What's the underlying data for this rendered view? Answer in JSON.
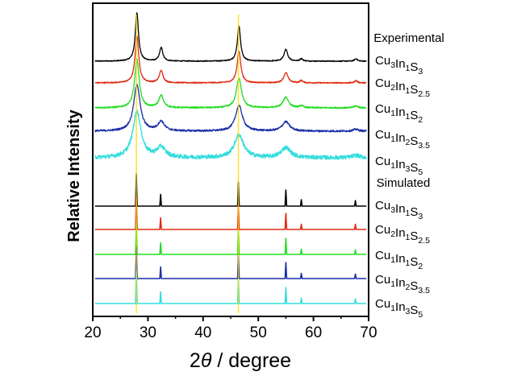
{
  "chart_data": {
    "type": "line",
    "title": "",
    "xlabel": "2θ / degree",
    "xlabel_symbol": "2θ",
    "xlabel_rest": " / degree",
    "ylabel": "Relative Intensity",
    "xlim": [
      20,
      70
    ],
    "xticks": [
      20,
      30,
      40,
      50,
      60,
      70
    ],
    "yticks_shown": false,
    "groups": {
      "experimental_label": "Experimental",
      "simulated_label": "Simulated"
    },
    "series": [
      {
        "name": "Cu3In1S3",
        "group": "Experimental",
        "color": "#000000",
        "peaks_2theta": [
          28.0,
          32.4,
          46.5,
          55.0,
          57.8,
          67.7
        ],
        "peak_rel_heights": [
          1.0,
          0.28,
          0.72,
          0.24,
          0.05,
          0.05
        ],
        "peak_widths": [
          0.35,
          0.35,
          0.35,
          0.4,
          0.3,
          0.3
        ],
        "noise": 0.01
      },
      {
        "name": "Cu2In1S2.5",
        "group": "Experimental",
        "color": "#e02a10",
        "peaks_2theta": [
          28.0,
          32.4,
          46.5,
          55.0,
          57.8,
          67.7
        ],
        "peak_rel_heights": [
          1.0,
          0.26,
          0.68,
          0.22,
          0.05,
          0.05
        ],
        "peak_widths": [
          0.4,
          0.4,
          0.4,
          0.45,
          0.3,
          0.3
        ],
        "noise": 0.012
      },
      {
        "name": "Cu1In1S2",
        "group": "Experimental",
        "color": "#22dd22",
        "peaks_2theta": [
          28.0,
          32.4,
          46.5,
          55.0,
          57.8,
          67.7
        ],
        "peak_rel_heights": [
          1.0,
          0.25,
          0.62,
          0.22,
          0.04,
          0.04
        ],
        "peak_widths": [
          0.5,
          0.5,
          0.55,
          0.6,
          0.4,
          0.4
        ],
        "noise": 0.015
      },
      {
        "name": "Cu1In2S3.5",
        "group": "Experimental",
        "color": "#1a2fa8",
        "peaks_2theta": [
          28.0,
          32.4,
          46.5,
          55.0,
          67.7
        ],
        "peak_rel_heights": [
          1.0,
          0.2,
          0.55,
          0.2,
          0.04
        ],
        "peak_widths": [
          0.7,
          0.7,
          0.75,
          0.8,
          0.6
        ],
        "noise": 0.02
      },
      {
        "name": "Cu1In3S5",
        "group": "Experimental",
        "color": "#33dddd",
        "peaks_2theta": [
          28.0,
          32.4,
          46.5,
          55.0,
          67.7
        ],
        "peak_rel_heights": [
          1.0,
          0.22,
          0.5,
          0.22,
          0.05
        ],
        "peak_widths": [
          0.9,
          0.9,
          1.0,
          1.0,
          0.8
        ],
        "noise": 0.045
      },
      {
        "name": "Cu3In1S3",
        "group": "Simulated",
        "color": "#000000",
        "peaks_2theta": [
          27.9,
          32.3,
          46.4,
          55.0,
          57.8,
          67.6
        ],
        "peak_rel_heights": [
          1.0,
          0.36,
          0.75,
          0.5,
          0.2,
          0.17
        ]
      },
      {
        "name": "Cu2In1S2.5",
        "group": "Simulated",
        "color": "#e02a10",
        "peaks_2theta": [
          27.9,
          32.3,
          46.4,
          55.0,
          57.8,
          67.6
        ],
        "peak_rel_heights": [
          1.0,
          0.36,
          0.75,
          0.5,
          0.16,
          0.16
        ]
      },
      {
        "name": "Cu1In1S2",
        "group": "Simulated",
        "color": "#22dd22",
        "peaks_2theta": [
          27.9,
          32.3,
          46.4,
          55.0,
          57.8,
          67.6
        ],
        "peak_rel_heights": [
          1.0,
          0.36,
          0.75,
          0.5,
          0.16,
          0.14
        ]
      },
      {
        "name": "Cu1In2S3.5",
        "group": "Simulated",
        "color": "#1a2fa8",
        "peaks_2theta": [
          27.9,
          32.3,
          46.4,
          55.0,
          57.8,
          67.6
        ],
        "peak_rel_heights": [
          1.0,
          0.36,
          0.75,
          0.5,
          0.16,
          0.14
        ]
      },
      {
        "name": "Cu1In3S5",
        "group": "Simulated",
        "color": "#33dddd",
        "peaks_2theta": [
          27.9,
          32.3,
          46.4,
          55.0,
          57.8,
          67.6
        ],
        "peak_rel_heights": [
          1.0,
          0.36,
          0.75,
          0.5,
          0.16,
          0.14
        ]
      }
    ],
    "reference_markers": [
      {
        "two_theta": 27.9,
        "color": "#ffd800"
      },
      {
        "two_theta": 46.4,
        "color": "#ffd800"
      }
    ]
  }
}
